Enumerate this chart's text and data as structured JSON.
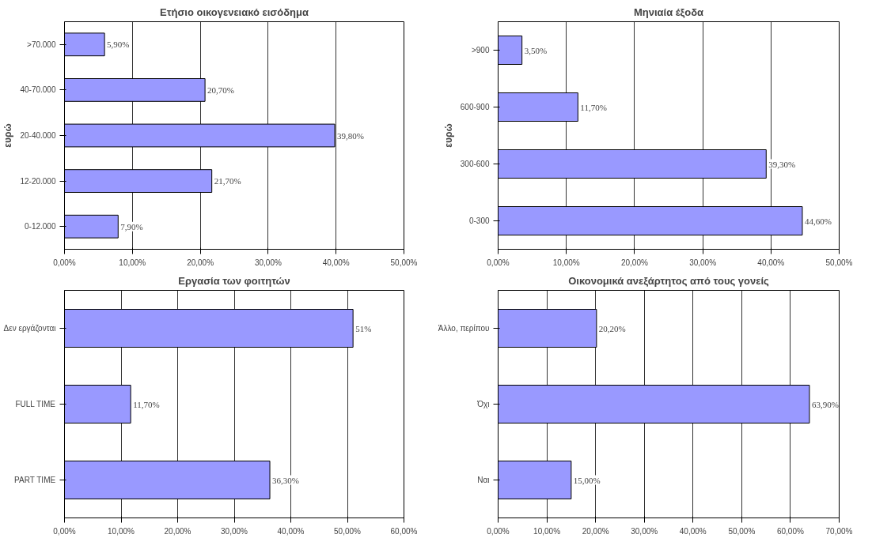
{
  "chart_data": [
    {
      "type": "bar",
      "orientation": "horizontal",
      "title": "Ετήσιο οικογενειακό εισόδημα",
      "ylabel": "ευρώ",
      "categories": [
        ">70.000",
        "40-70.000",
        "20-40.000",
        "12-20.000",
        "0-12.000"
      ],
      "values": [
        5.9,
        20.7,
        39.8,
        21.7,
        7.9
      ],
      "value_labels": [
        "5,90%",
        "20,70%",
        "39,80%",
        "21,70%",
        "7,90%"
      ],
      "color": "#9999ff",
      "xlim": [
        0,
        50
      ],
      "xticks": [
        {
          "value": 0,
          "label": "0,00%"
        },
        {
          "value": 10,
          "label": "10,00%"
        },
        {
          "value": 20,
          "label": "20,00%"
        },
        {
          "value": 30,
          "label": "30,00%"
        },
        {
          "value": 40,
          "label": "40,00%"
        },
        {
          "value": 50,
          "label": "50,00%"
        }
      ],
      "grid": "x"
    },
    {
      "type": "bar",
      "orientation": "horizontal",
      "title": "Μηνιαία έξοδα",
      "ylabel": "ευρώ",
      "categories": [
        ">900",
        "600-900",
        "300-600",
        "0-300"
      ],
      "values": [
        3.5,
        11.7,
        39.3,
        44.6
      ],
      "value_labels": [
        "3,50%",
        "11,70%",
        "39,30%",
        "44,60%"
      ],
      "color": "#9999ff",
      "xlim": [
        0,
        50
      ],
      "xticks": [
        {
          "value": 0,
          "label": "0,00%"
        },
        {
          "value": 10,
          "label": "10,00%"
        },
        {
          "value": 20,
          "label": "20,00%"
        },
        {
          "value": 30,
          "label": "30,00%"
        },
        {
          "value": 40,
          "label": "40,00%"
        },
        {
          "value": 50,
          "label": "50,00%"
        }
      ],
      "grid": "x"
    },
    {
      "type": "bar",
      "orientation": "horizontal",
      "title": "Εργασία των φοιτητών",
      "categories": [
        "Δεν εργάζονται",
        "FULL TIME",
        "PART TIME"
      ],
      "values": [
        51,
        11.7,
        36.3
      ],
      "value_labels": [
        "51%",
        "11,70%",
        "36,30%"
      ],
      "color": "#9999ff",
      "xlim": [
        0,
        60
      ],
      "xticks": [
        {
          "value": 0,
          "label": "0,00%"
        },
        {
          "value": 10,
          "label": "10,00%"
        },
        {
          "value": 20,
          "label": "20,00%"
        },
        {
          "value": 30,
          "label": "30,00%"
        },
        {
          "value": 40,
          "label": "40,00%"
        },
        {
          "value": 50,
          "label": "50,00%"
        },
        {
          "value": 60,
          "label": "60,00%"
        }
      ],
      "grid": "x"
    },
    {
      "type": "bar",
      "orientation": "horizontal",
      "title": "Οικονομικά ανεξάρτητος από τους γονείς",
      "categories": [
        "Άλλο, περίπου",
        "Όχι",
        "Ναι"
      ],
      "values": [
        20.2,
        63.9,
        15.0
      ],
      "value_labels": [
        "20,20%",
        "63,90%",
        "15,00%"
      ],
      "color": "#9999ff",
      "xlim": [
        0,
        70
      ],
      "xticks": [
        {
          "value": 0,
          "label": "0,00%"
        },
        {
          "value": 10,
          "label": "10,00%"
        },
        {
          "value": 20,
          "label": "20,00%"
        },
        {
          "value": 30,
          "label": "30,00%"
        },
        {
          "value": 40,
          "label": "40,00%"
        },
        {
          "value": 50,
          "label": "50,00%"
        },
        {
          "value": 60,
          "label": "60,00%"
        },
        {
          "value": 70,
          "label": "70,00%"
        }
      ],
      "grid": "x"
    }
  ]
}
